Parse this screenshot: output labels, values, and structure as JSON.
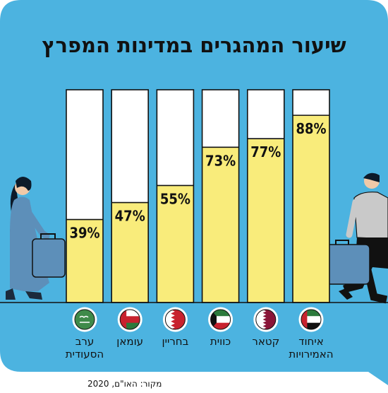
{
  "chart_data": {
    "type": "bar",
    "title": "שיעור המהגרים במדינות המפרץ",
    "source": "מקור: האו\"ם, 2020",
    "ylim": [
      0,
      100
    ],
    "unit": "%",
    "categories": [
      {
        "label_lines": [
          "ערב",
          "הסעודית"
        ],
        "flag": "saudi-arabia-flag-icon"
      },
      {
        "label_lines": [
          "עומאן"
        ],
        "flag": "oman-flag-icon"
      },
      {
        "label_lines": [
          "בחריין"
        ],
        "flag": "bahrain-flag-icon"
      },
      {
        "label_lines": [
          "כווית"
        ],
        "flag": "kuwait-flag-icon"
      },
      {
        "label_lines": [
          "קטאר"
        ],
        "flag": "qatar-flag-icon"
      },
      {
        "label_lines": [
          "איחוד",
          "האמירויות"
        ],
        "flag": "uae-flag-icon"
      }
    ],
    "values": [
      39,
      47,
      55,
      73,
      77,
      88
    ],
    "value_labels": [
      "39%",
      "47%",
      "55%",
      "73%",
      "77%",
      "88%"
    ]
  },
  "colors": {
    "background": "#4cb3e0",
    "bar_fill": "#f9ec7b",
    "bar_empty": "#ffffff",
    "outline": "#111111",
    "flag_circle": "#ffffff"
  }
}
